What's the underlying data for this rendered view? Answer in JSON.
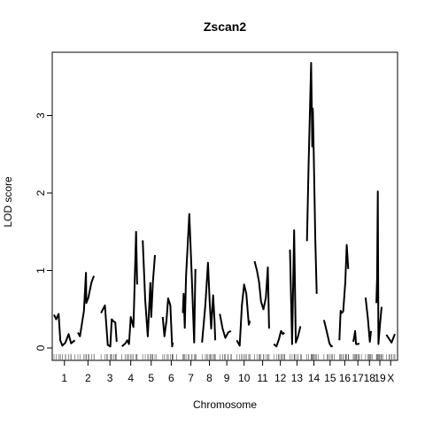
{
  "chart_data": {
    "type": "line",
    "title": "Zscan2",
    "xlabel": "Chromosome",
    "ylabel": "LOD score",
    "ylim": [
      0,
      3.8
    ],
    "yticks": [
      0,
      1,
      2,
      3
    ],
    "grid": false,
    "legend": "none",
    "line_color": "#000000",
    "chromosomes": [
      {
        "label": "1",
        "points": [
          [
            0,
            0.43
          ],
          [
            0.1,
            0.37
          ],
          [
            0.22,
            0.44
          ],
          [
            0.3,
            0.1
          ],
          [
            0.4,
            0.03
          ],
          [
            0.55,
            0.07
          ],
          [
            0.7,
            0.18
          ],
          [
            0.82,
            0.06
          ],
          [
            1.0,
            0.1
          ]
        ]
      },
      {
        "label": "2",
        "points": [
          [
            0,
            0.2
          ],
          [
            0.1,
            0.15
          ],
          [
            0.3,
            0.48
          ],
          [
            0.4,
            0.97
          ],
          [
            0.42,
            0.58
          ],
          [
            0.52,
            0.65
          ],
          [
            0.68,
            0.85
          ],
          [
            0.8,
            0.93
          ]
        ]
      },
      {
        "label": "3",
        "points": [
          [
            0,
            0.45
          ],
          [
            0.22,
            0.55
          ],
          [
            0.38,
            0.04
          ],
          [
            0.52,
            0.02
          ],
          [
            0.6,
            0.37
          ],
          [
            0.72,
            0.34
          ],
          [
            0.8,
            0.33
          ],
          [
            0.88,
            0.08
          ]
        ]
      },
      {
        "label": "4",
        "points": [
          [
            0,
            0.02
          ],
          [
            0.2,
            0.06
          ],
          [
            0.3,
            0.1
          ],
          [
            0.4,
            0.05
          ],
          [
            0.5,
            0.4
          ],
          [
            0.65,
            0.27
          ],
          [
            0.8,
            1.5
          ],
          [
            0.86,
            0.82
          ]
        ]
      },
      {
        "label": "5",
        "points": [
          [
            0,
            1.39
          ],
          [
            0.15,
            0.62
          ],
          [
            0.3,
            0.15
          ],
          [
            0.45,
            0.84
          ],
          [
            0.5,
            0.4
          ],
          [
            0.6,
            0.85
          ],
          [
            0.72,
            1.2
          ]
        ]
      },
      {
        "label": "6",
        "points": [
          [
            0,
            0.4
          ],
          [
            0.1,
            0.15
          ],
          [
            0.22,
            0.35
          ],
          [
            0.32,
            0.64
          ],
          [
            0.45,
            0.55
          ],
          [
            0.55,
            0.02
          ],
          [
            0.6,
            0.07
          ]
        ]
      },
      {
        "label": "7",
        "points": [
          [
            0,
            0.45
          ],
          [
            0.05,
            0.7
          ],
          [
            0.12,
            0.26
          ],
          [
            0.2,
            0.92
          ],
          [
            0.4,
            1.73
          ],
          [
            0.55,
            0.95
          ],
          [
            0.7,
            0.07
          ],
          [
            0.78,
            1.02
          ]
        ]
      },
      {
        "label": "8",
        "points": [
          [
            0,
            0.07
          ],
          [
            0.22,
            0.55
          ],
          [
            0.4,
            1.1
          ],
          [
            0.52,
            0.6
          ],
          [
            0.62,
            0.25
          ],
          [
            0.75,
            0.68
          ],
          [
            0.85,
            0.35
          ],
          [
            0.9,
            0.1
          ]
        ]
      },
      {
        "label": "9",
        "points": [
          [
            0,
            0.44
          ],
          [
            0.2,
            0.25
          ],
          [
            0.4,
            0.13
          ],
          [
            0.6,
            0.2
          ],
          [
            0.8,
            0.22
          ]
        ]
      },
      {
        "label": "10",
        "points": [
          [
            0,
            0.1
          ],
          [
            0.2,
            0.03
          ],
          [
            0.35,
            0.55
          ],
          [
            0.5,
            0.82
          ],
          [
            0.65,
            0.7
          ],
          [
            0.82,
            0.3
          ],
          [
            0.9,
            0.35
          ]
        ]
      },
      {
        "label": "11",
        "points": [
          [
            0,
            1.12
          ],
          [
            0.15,
            1.0
          ],
          [
            0.28,
            0.85
          ],
          [
            0.4,
            0.6
          ],
          [
            0.55,
            0.5
          ],
          [
            0.7,
            0.65
          ],
          [
            0.82,
            1.04
          ],
          [
            0.9,
            0.25
          ]
        ]
      },
      {
        "label": "12",
        "points": [
          [
            0,
            0.05
          ],
          [
            0.2,
            0.02
          ],
          [
            0.4,
            0.12
          ],
          [
            0.55,
            0.22
          ],
          [
            0.7,
            0.18
          ],
          [
            0.8,
            0.2
          ]
        ]
      },
      {
        "label": "13",
        "points": [
          [
            0,
            1.27
          ],
          [
            0.15,
            0.05
          ],
          [
            0.3,
            1.52
          ],
          [
            0.42,
            0.07
          ],
          [
            0.58,
            0.15
          ],
          [
            0.75,
            0.28
          ]
        ]
      },
      {
        "label": "14",
        "points": [
          [
            0,
            1.38
          ],
          [
            0.12,
            2.4
          ],
          [
            0.3,
            3.68
          ],
          [
            0.38,
            2.6
          ],
          [
            0.42,
            3.09
          ],
          [
            0.48,
            2.6
          ],
          [
            0.6,
            1.4
          ],
          [
            0.7,
            0.7
          ]
        ]
      },
      {
        "label": "15",
        "points": [
          [
            0,
            0.36
          ],
          [
            0.25,
            0.2
          ],
          [
            0.45,
            0.06
          ],
          [
            0.6,
            0.02
          ],
          [
            0.7,
            0.03
          ]
        ]
      },
      {
        "label": "16",
        "points": [
          [
            0,
            0.1
          ],
          [
            0.12,
            0.48
          ],
          [
            0.2,
            0.45
          ],
          [
            0.35,
            0.47
          ],
          [
            0.55,
            0.85
          ],
          [
            0.68,
            1.33
          ],
          [
            0.82,
            1.02
          ]
        ]
      },
      {
        "label": "17",
        "points": [
          [
            0,
            0.08
          ],
          [
            0.1,
            0.14
          ],
          [
            0.2,
            0.22
          ],
          [
            0.3,
            0.05
          ],
          [
            0.5,
            0.05
          ],
          [
            0.65,
            0.06
          ]
        ]
      },
      {
        "label": "18",
        "points": [
          [
            0,
            0.65
          ],
          [
            0.3,
            0.38
          ],
          [
            0.55,
            0.08
          ],
          [
            0.7,
            0.22
          ]
        ]
      },
      {
        "label": "19",
        "points": [
          [
            0,
            0.58
          ],
          [
            0.1,
            0.9
          ],
          [
            0.2,
            2.02
          ],
          [
            0.3,
            0.05
          ],
          [
            0.5,
            0.28
          ],
          [
            0.75,
            0.53
          ]
        ]
      },
      {
        "label": "X",
        "points": [
          [
            0,
            0.17
          ],
          [
            0.3,
            0.12
          ],
          [
            0.6,
            0.07
          ],
          [
            1.0,
            0.18
          ]
        ]
      }
    ]
  }
}
